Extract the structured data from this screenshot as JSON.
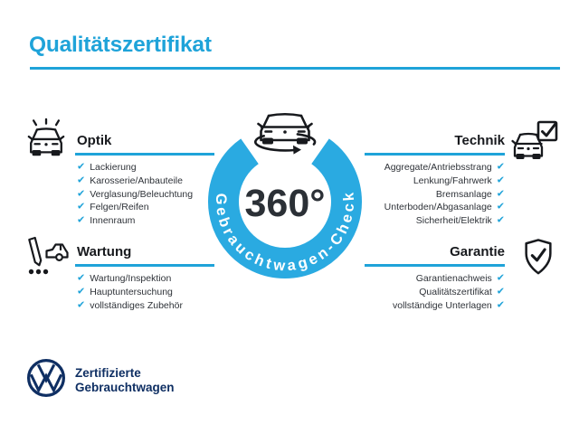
{
  "colors": {
    "accent": "#1fa3d9",
    "ring": "#2aaae1",
    "navy": "#0f2f63",
    "ink": "#17191d",
    "dark": "#2b3036",
    "text": "#2e3238"
  },
  "check_glyph": "✔",
  "title": "Qualitätszertifikat",
  "badge": {
    "degree_label": "360°",
    "ring_label": "Gebrauchtwagen-Check"
  },
  "sections": [
    {
      "id": "optik",
      "title": "Optik",
      "items": [
        "Lackierung",
        "Karosserie/Anbauteile",
        "Verglasung/Beleuchtung",
        "Felgen/Reifen",
        "Innenraum"
      ]
    },
    {
      "id": "technik",
      "title": "Technik",
      "items": [
        "Aggregate/Antriebsstrang",
        "Lenkung/Fahrwerk",
        "Bremsanlage",
        "Unterboden/Abgasanlage",
        "Sicherheit/Elektrik"
      ]
    },
    {
      "id": "wartung",
      "title": "Wartung",
      "items": [
        "Wartung/Inspektion",
        "Hauptuntersuchung",
        "vollständiges Zubehör"
      ]
    },
    {
      "id": "garantie",
      "title": "Garantie",
      "items": [
        "Garantienachweis",
        "Qualitätszertifikat",
        "vollständige Unterlagen"
      ]
    }
  ],
  "footer": {
    "line1": "Zertifizierte",
    "line2": "Gebrauchtwagen"
  }
}
